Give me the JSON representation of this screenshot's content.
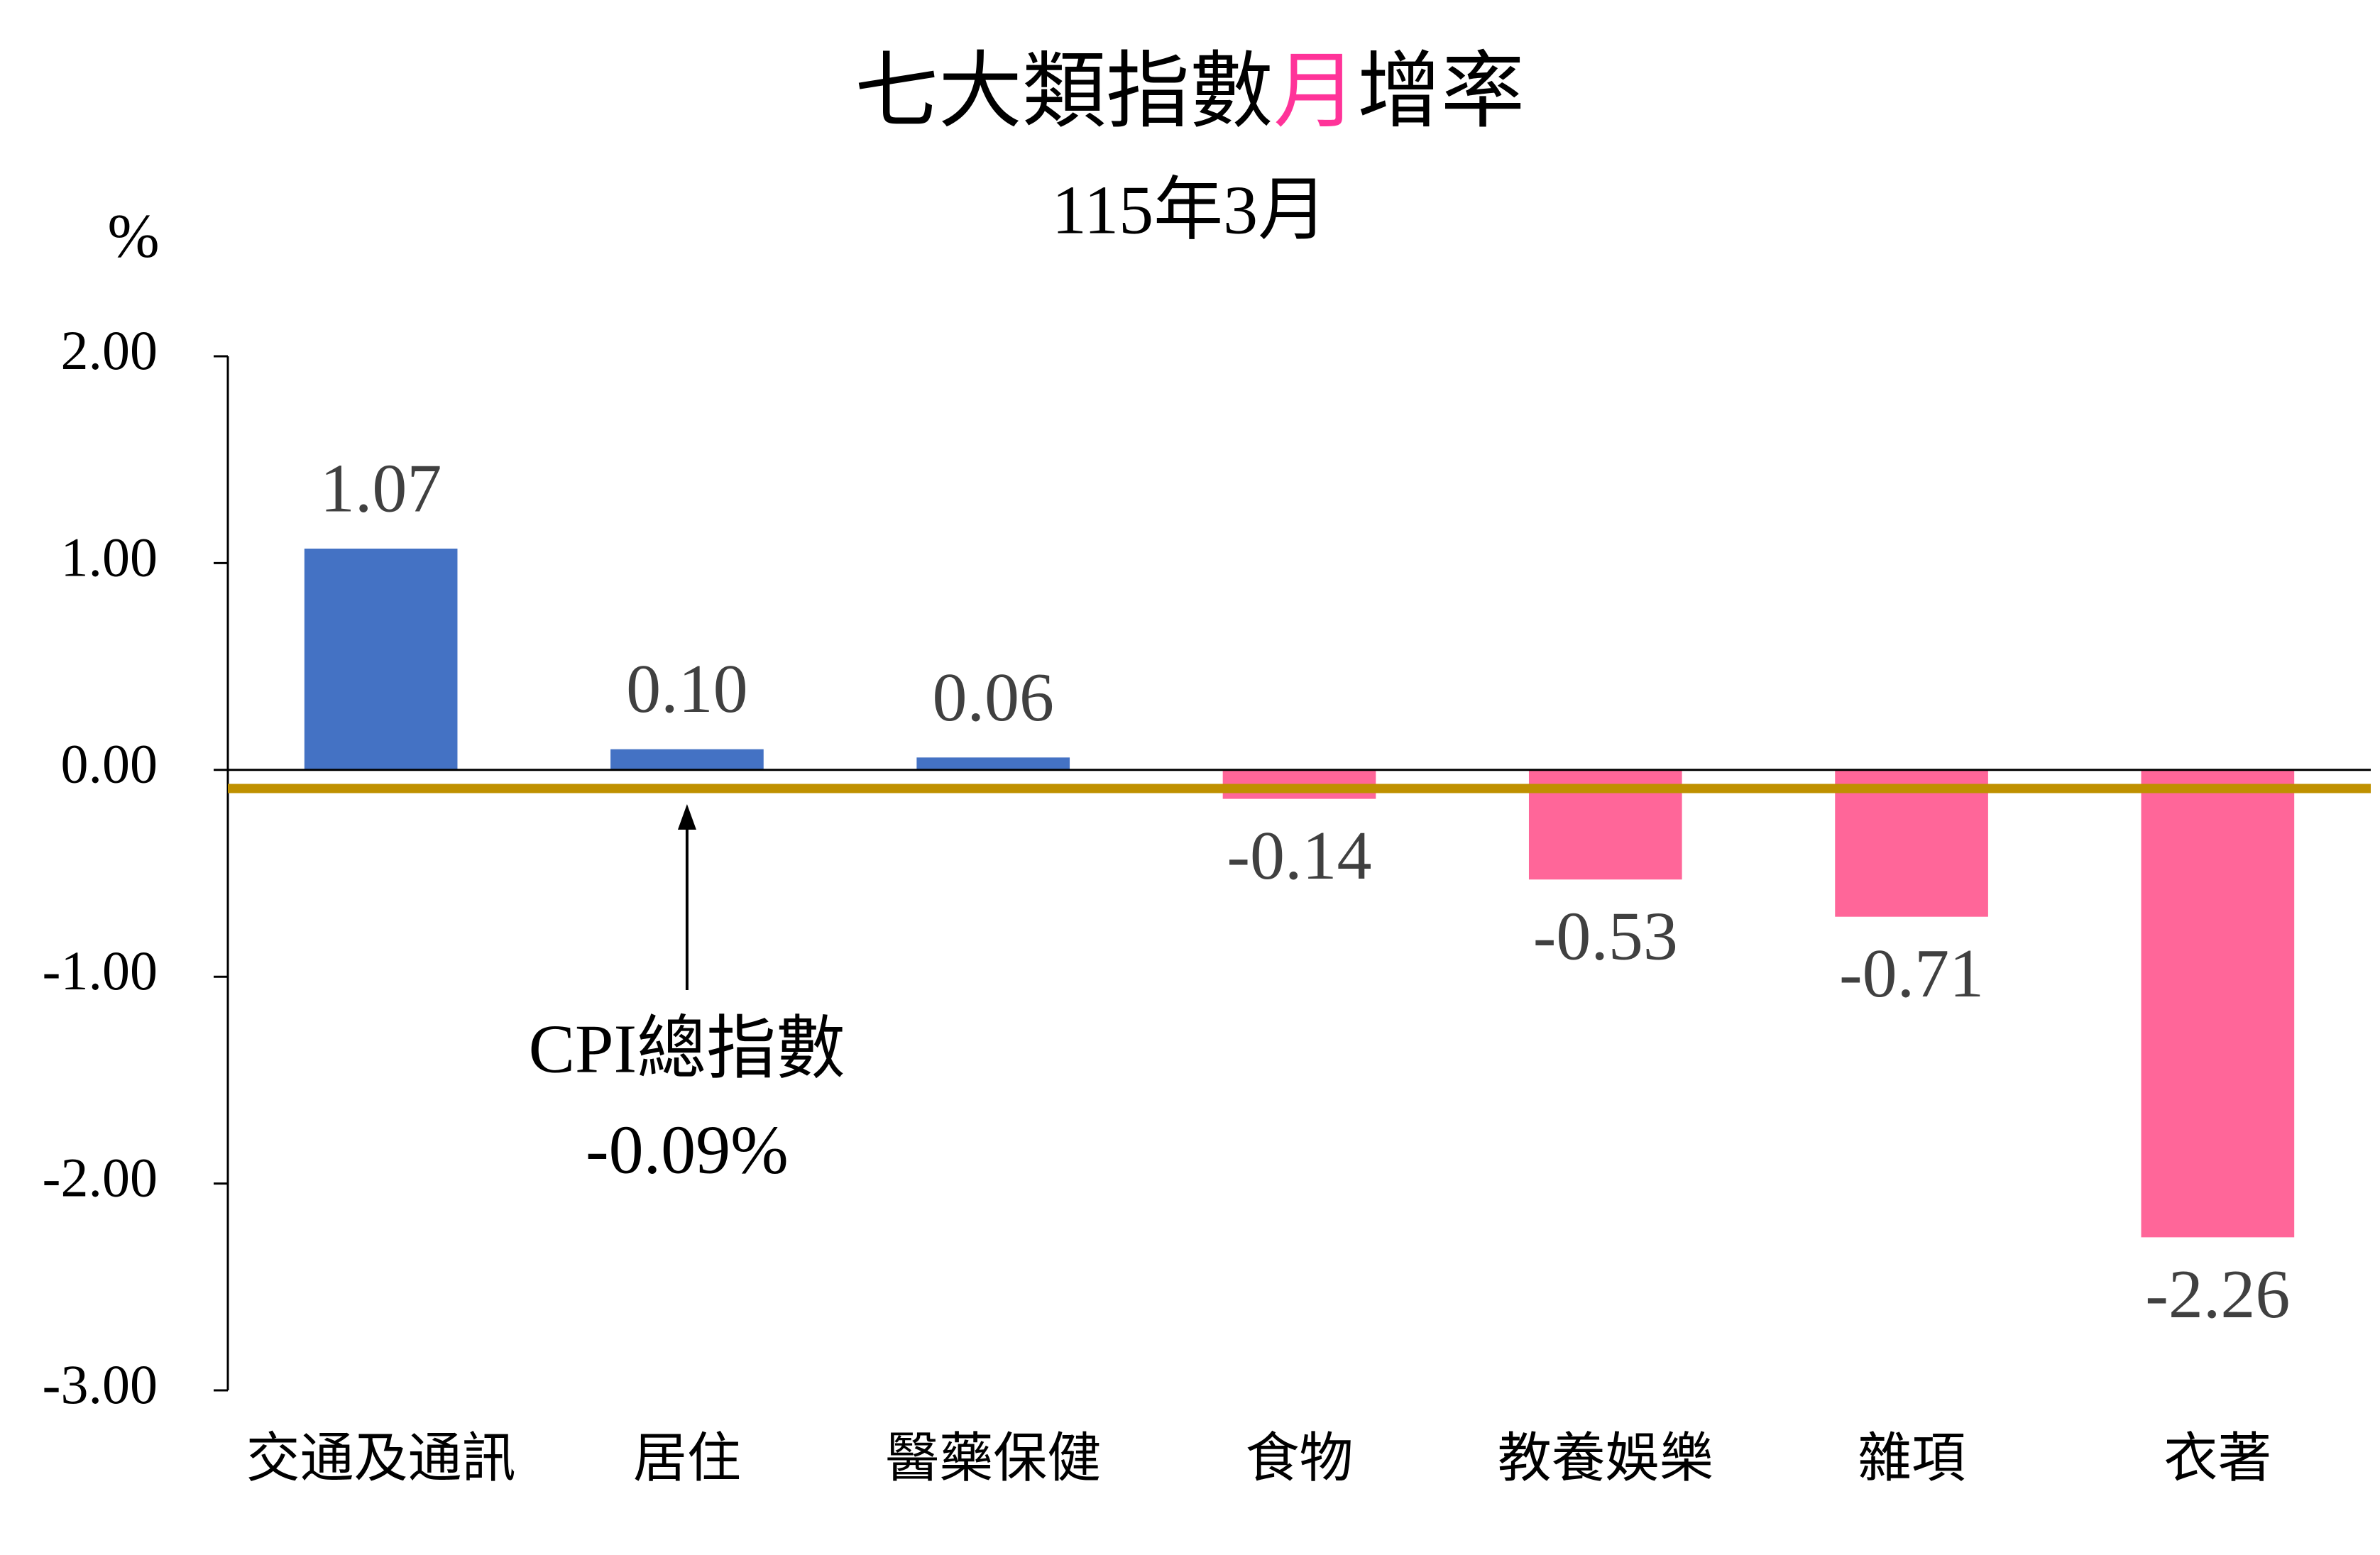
{
  "chart_data": {
    "type": "bar",
    "title": [
      "七大類指數",
      "月",
      "增率"
    ],
    "title_highlight_color": "#ff3399",
    "subtitle": "115年3月",
    "y_axis_label": "%",
    "categories": [
      "交通及通訊",
      "居住",
      "醫藥保健",
      "食物",
      "教養娛樂",
      "雜項",
      "衣著"
    ],
    "values": [
      1.07,
      0.1,
      0.06,
      -0.14,
      -0.53,
      -0.71,
      -2.26
    ],
    "value_labels": [
      "1.07",
      "0.10",
      "0.06",
      "-0.14",
      "-0.53",
      "-0.71",
      "-2.26"
    ],
    "colors": [
      "#4472c4",
      "#4472c4",
      "#4472c4",
      "#ff6699",
      "#ff6699",
      "#ff6699",
      "#ff6699"
    ],
    "ylim": [
      -3,
      2
    ],
    "yticks": [
      {
        "value": -3,
        "label": "-3.00"
      },
      {
        "value": -2,
        "label": "-2.00"
      },
      {
        "value": -1,
        "label": "-1.00"
      },
      {
        "value": 0,
        "label": "0.00"
      },
      {
        "value": 1,
        "label": "1.00"
      },
      {
        "value": 2,
        "label": "2.00"
      }
    ],
    "reference_line": {
      "value": -0.09,
      "color": "#bf9000",
      "label": "CPI總指數",
      "value_label": "-0.09%"
    }
  }
}
